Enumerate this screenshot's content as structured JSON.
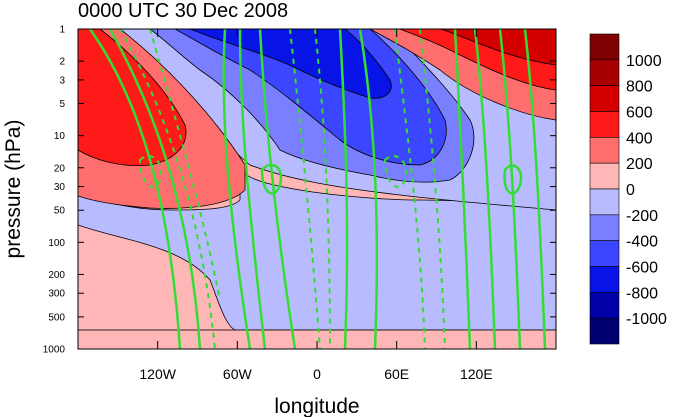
{
  "chart_data": {
    "type": "heatmap",
    "title": "0000 UTC 30 Dec 2008",
    "xlabel": "longitude",
    "ylabel": "pressure (hPa)",
    "x_scale": "linear",
    "y_scale": "log",
    "y_inverted": true,
    "xlim": [
      -180,
      180
    ],
    "ylim": [
      1000,
      1
    ],
    "x_ticks": [
      {
        "value": -120,
        "label": "120W"
      },
      {
        "value": -60,
        "label": "60W"
      },
      {
        "value": 0,
        "label": "0"
      },
      {
        "value": 60,
        "label": "60E"
      },
      {
        "value": 120,
        "label": "120E"
      }
    ],
    "y_ticks": [
      {
        "value": 1,
        "label": "1"
      },
      {
        "value": 2,
        "label": "2"
      },
      {
        "value": 3,
        "label": "3"
      },
      {
        "value": 5,
        "label": "5"
      },
      {
        "value": 10,
        "label": "10"
      },
      {
        "value": 20,
        "label": "20"
      },
      {
        "value": 30,
        "label": "30"
      },
      {
        "value": 50,
        "label": "50"
      },
      {
        "value": 100,
        "label": "100"
      },
      {
        "value": 200,
        "label": "200"
      },
      {
        "value": 300,
        "label": "300"
      },
      {
        "value": 500,
        "label": "500"
      },
      {
        "value": 1000,
        "label": "1000"
      }
    ],
    "colorbar": {
      "labels": [
        "1000",
        "800",
        "600",
        "400",
        "200",
        "0",
        "-200",
        "-400",
        "-600",
        "-800",
        "-1000"
      ],
      "colors": [
        "#7f0000",
        "#a80000",
        "#d40000",
        "#ff1a1a",
        "#ff6e6e",
        "#ffb6b6",
        "#b8bcff",
        "#7a7fff",
        "#3c46ff",
        "#0814e6",
        "#0000a8",
        "#000070"
      ]
    },
    "overlay_contours": {
      "color": "#33dd33",
      "negative_dashed": true
    }
  }
}
